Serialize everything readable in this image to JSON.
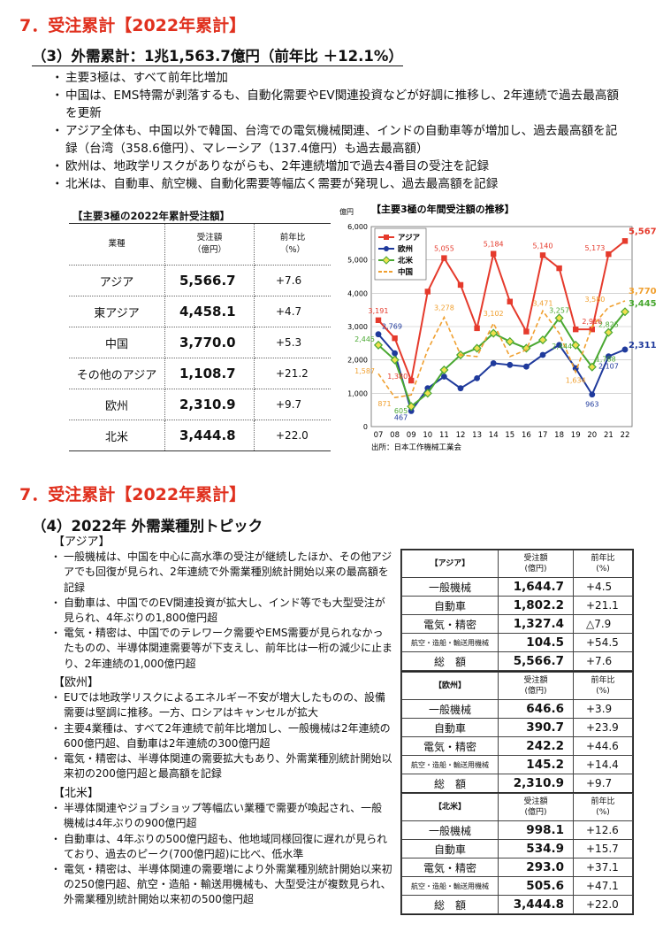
{
  "section1": {
    "heading": "7．受注累計【2022年累計】",
    "subheading": "（3）外需累計：1兆1,563.7億円（前年比 ＋12.1%）",
    "bullets": [
      "主要3極は、すべて前年比増加",
      "中国は、EMS特需が剥落するも、自動化需要やEV関連投資などが好調に推移し、2年連続で過去最高額を更新",
      "アジア全体も、中国以外で韓国、台湾での電気機械関連、インドの自動車等が増加し、過去最高額を記録（台湾（358.6億円）、マレーシア（137.4億円）も過去最高額）",
      "欧州は、地政学リスクがありながらも、2年連続増加で過去4番目の受注を記録",
      "北米は、自動車、航空機、自動化需要等幅広く需要が発現し、過去最高額を記録"
    ],
    "table_caption": "【主要3極の2022年累計受注額】",
    "table": {
      "col1": "業種",
      "col2a": "受注額",
      "col2b": "（億円）",
      "col3a": "前年比",
      "col3b": "（%）",
      "rows": [
        {
          "name": "アジア",
          "value": "5,566.7",
          "pct": "+7.6"
        },
        {
          "name": "東アジア",
          "value": "4,458.1",
          "pct": "+4.7"
        },
        {
          "name": "中国",
          "value": "3,770.0",
          "pct": "+5.3"
        },
        {
          "name": "その他のアジア",
          "value": "1,108.7",
          "pct": "+21.2"
        },
        {
          "name": "欧州",
          "value": "2,310.9",
          "pct": "+9.7"
        },
        {
          "name": "北米",
          "value": "3,444.8",
          "pct": "+22.0"
        }
      ]
    }
  },
  "chart_data": {
    "type": "line",
    "title": "【主要3極の年間受注額の推移】",
    "ylabel": "億円",
    "source": "出所：日本工作機械工業会",
    "ylim": [
      0,
      6000
    ],
    "yticks": [
      "0",
      "1,000",
      "2,000",
      "3,000",
      "4,000",
      "5,000",
      "6,000"
    ],
    "categories": [
      "07",
      "08",
      "09",
      "10",
      "11",
      "12",
      "13",
      "14",
      "15",
      "16",
      "17",
      "18",
      "19",
      "20",
      "21",
      "22"
    ],
    "series": [
      {
        "name": "アジア",
        "color": "#e53a2c",
        "values": [
          3191,
          2650,
          1380,
          4050,
          5055,
          4250,
          2950,
          5184,
          3750,
          2850,
          5140,
          4750,
          2916,
          2916,
          5173,
          5567
        ]
      },
      {
        "name": "欧州",
        "color": "#1f3a9c",
        "values": [
          2769,
          2200,
          467,
          1150,
          1500,
          1150,
          1450,
          1900,
          1850,
          1800,
          2150,
          2450,
          1750,
          963,
          2107,
          2311
        ]
      },
      {
        "name": "北米",
        "color": "#4aa832",
        "values": [
          2445,
          2000,
          605,
          1000,
          1700,
          2150,
          2350,
          2800,
          2550,
          2350,
          2600,
          3257,
          2444,
          1788,
          2825,
          3445
        ]
      },
      {
        "name": "中国",
        "color": "#f0a030",
        "values": [
          1587,
          871,
          950,
          2300,
          3278,
          2150,
          2100,
          3102,
          2100,
          2300,
          3471,
          2800,
          1634,
          3000,
          3580,
          3770
        ]
      }
    ],
    "data_labels": [
      "3,191",
      "2,769",
      "2,445",
      "1,587",
      "1,380",
      "871",
      "605",
      "467",
      "5,055",
      "3,278",
      "5,184",
      "3,102",
      "5,140",
      "3,471",
      "3,257",
      "2,444",
      "1,634",
      "2,916",
      "1,788",
      "963",
      "5,173",
      "3,580",
      "2,825",
      "2,107",
      "5,567",
      "3,770",
      "3,445",
      "2,311"
    ],
    "legend_position": "top-left"
  },
  "section2": {
    "heading": "7．受注累計【2022年累計】",
    "subheading": "（4）2022年 外需業種別トピック",
    "blocks": [
      {
        "label": "【アジア】",
        "bullets": [
          "一般機械は、中国を中心に高水準の受注が継続したほか、その他アジアでも回復が見られ、2年連続で外需業種別統計開始以来の最高額を記録",
          "自動車は、中国でのEV関連投資が拡大し、インド等でも大型受注が見られ、4年ぶりの1,800億円超",
          "電気・精密は、中国でのテレワーク需要やEMS需要が見られなかったものの、半導体関連需要等が下支えし、前年比は一桁の減少に止まり、2年連続の1,000億円超"
        ]
      },
      {
        "label": "【欧州】",
        "bullets": [
          "EUでは地政学リスクによるエネルギー不安が増大したものの、設備需要は堅調に推移。一方、ロシアはキャンセルが拡大",
          "主要4業種は、すべて2年連続で前年比増加し、一般機械は2年連続の600億円超、自動車は2年連続の300億円超",
          "電気・精密は、半導体関連の需要拡大もあり、外需業種別統計開始以来初の200億円超と最高額を記録"
        ]
      },
      {
        "label": "【北米】",
        "bullets": [
          "半導体関連やジョブショップ等幅広い業種で需要が喚起され、一般機械は4年ぶりの900億円超",
          "自動車は、4年ぶりの500億円超も、他地域同様回復に遅れが見られており、過去のピーク(700億円超)に比べ、低水準",
          "電気・精密は、半導体関連の需要増により外需業種別統計開始以来初の250億円超、航空・造船・輸送用機械も、大型受注が複数見られ、外需業種別統計開始以来初の500億円超"
        ]
      }
    ],
    "tables": [
      {
        "region": "【アジア】",
        "hdr_value": "受注額",
        "hdr_value_unit": "(億円)",
        "hdr_pct": "前年比",
        "hdr_pct_unit": "(%)",
        "rows": [
          {
            "name": "一般機械",
            "value": "1,644.7",
            "pct": "+4.5"
          },
          {
            "name": "自動車",
            "value": "1,802.2",
            "pct": "+21.1"
          },
          {
            "name": "電気・精密",
            "value": "1,327.4",
            "pct": "△7.9"
          },
          {
            "name": "航空・造船・輸送用機械",
            "value": "104.5",
            "pct": "+54.5"
          }
        ],
        "total_label": "総　額",
        "total_value": "5,566.7",
        "total_pct": "+7.6"
      },
      {
        "region": "【欧州】",
        "hdr_value": "受注額",
        "hdr_value_unit": "(億円)",
        "hdr_pct": "前年比",
        "hdr_pct_unit": "(%)",
        "rows": [
          {
            "name": "一般機械",
            "value": "646.6",
            "pct": "+3.9"
          },
          {
            "name": "自動車",
            "value": "390.7",
            "pct": "+23.9"
          },
          {
            "name": "電気・精密",
            "value": "242.2",
            "pct": "+44.6"
          },
          {
            "name": "航空・造船・輸送用機械",
            "value": "145.2",
            "pct": "+14.4"
          }
        ],
        "total_label": "総　額",
        "total_value": "2,310.9",
        "total_pct": "+9.7"
      },
      {
        "region": "【北米】",
        "hdr_value": "受注額",
        "hdr_value_unit": "(億円)",
        "hdr_pct": "前年比",
        "hdr_pct_unit": "(%)",
        "rows": [
          {
            "name": "一般機械",
            "value": "998.1",
            "pct": "+12.6"
          },
          {
            "name": "自動車",
            "value": "534.9",
            "pct": "+15.7"
          },
          {
            "name": "電気・精密",
            "value": "293.0",
            "pct": "+37.1"
          },
          {
            "name": "航空・造船・輸送用機械",
            "value": "505.6",
            "pct": "+47.1"
          }
        ],
        "total_label": "総　額",
        "total_value": "3,444.8",
        "total_pct": "+22.0"
      }
    ]
  }
}
